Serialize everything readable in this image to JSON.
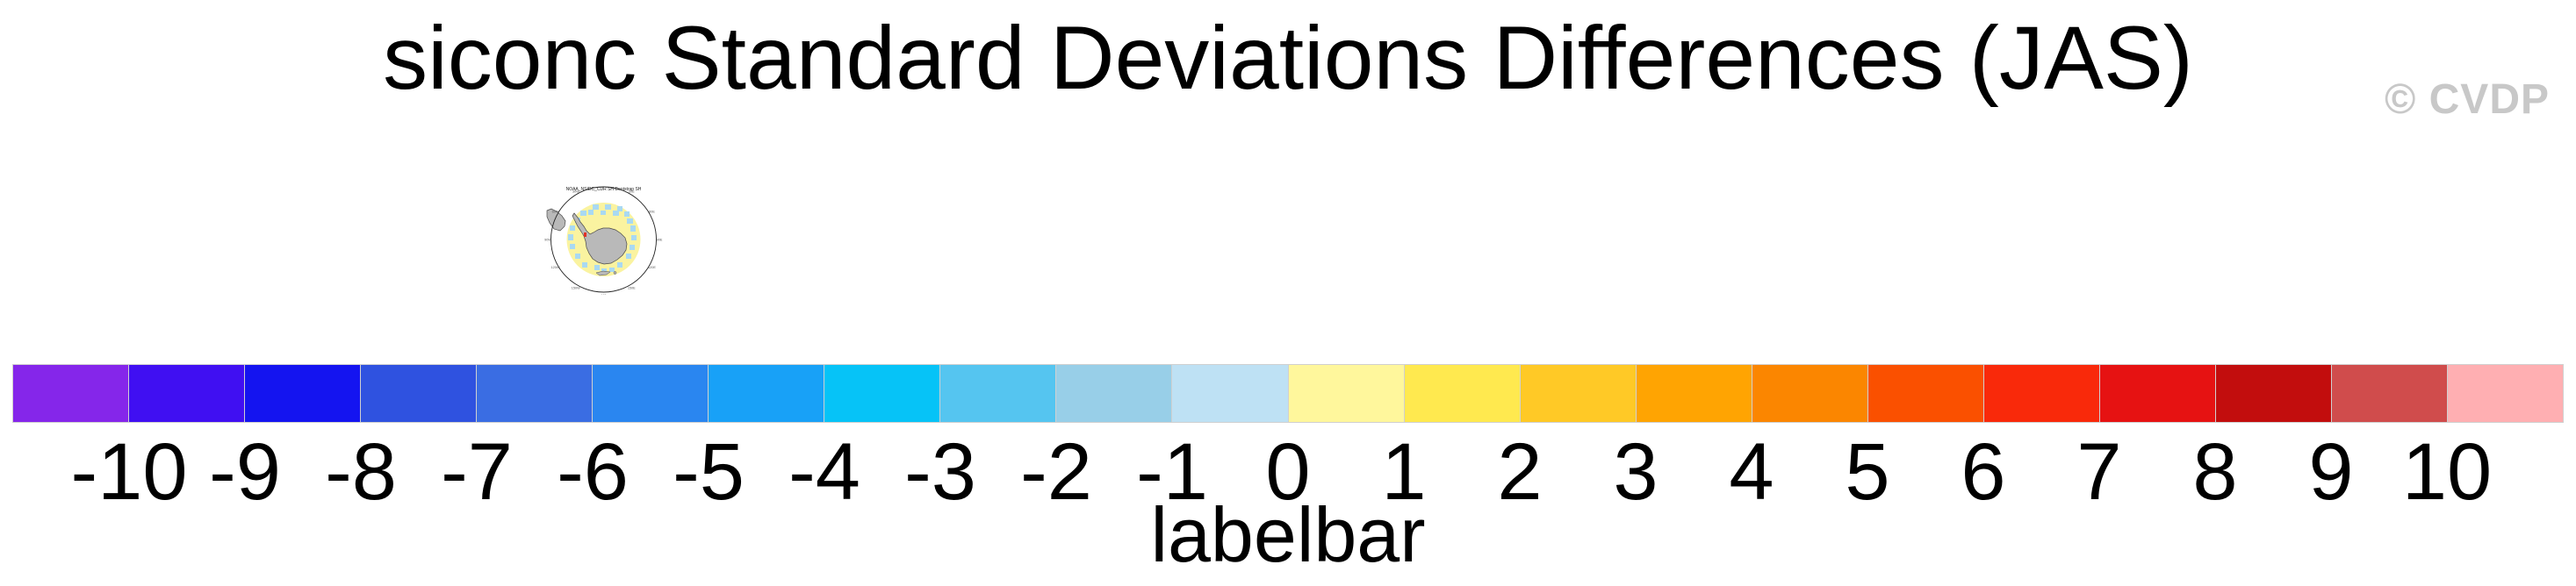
{
  "title": "siconc Standard Deviations Differences (JAS)",
  "watermark": "© CVDP",
  "watermark_color": "#c8c8c8",
  "map_panel": {
    "title": "NOAA_NSIDC_CDR SH-Bootstrap SH",
    "lon_labels": [
      "0",
      "30E",
      "60E",
      "90E",
      "120E",
      "150E",
      "180",
      "150W",
      "120W",
      "90W",
      "60W",
      "30W"
    ],
    "colors": {
      "land": "#b9b9b9",
      "land_outline": "#4a4a4a",
      "positive_cells": "#faf3a0",
      "negative_cells": "#a9d9f2",
      "highlight_cell": "#e03227",
      "circle_outline": "#222222",
      "label_color": "#555555"
    }
  },
  "colorbar": {
    "label": "labelbar",
    "tick_labels": [
      "-10",
      "-9",
      "-8",
      "-7",
      "-6",
      "-5",
      "-4",
      "-3",
      "-2",
      "-1",
      "0",
      "1",
      "2",
      "3",
      "4",
      "5",
      "6",
      "7",
      "8",
      "9",
      "10"
    ],
    "colors": [
      "#8526EA",
      "#400FF2",
      "#1414F0",
      "#2F52E0",
      "#3A6DE3",
      "#2A86F0",
      "#18A1F7",
      "#06C3F7",
      "#55C5F0",
      "#98CFE8",
      "#BEE1F4",
      "#FFF79C",
      "#FFE94F",
      "#FFC926",
      "#FFA402",
      "#FB8600",
      "#FA5000",
      "#F9290A",
      "#E61212",
      "#C20D0D",
      "#D04C4C",
      "#FFAFB2"
    ],
    "border_color": "#d0d0d0"
  },
  "chart_data": {
    "type": "heatmap",
    "title": "siconc Standard Deviations Differences (JAS)",
    "subtitle_panel": "NOAA_NSIDC_CDR SH-Bootstrap SH",
    "colorbar_label": "labelbar",
    "levels": [
      -10,
      -9,
      -8,
      -7,
      -6,
      -5,
      -4,
      -3,
      -2,
      -1,
      0,
      1,
      2,
      3,
      4,
      5,
      6,
      7,
      8,
      9,
      10
    ],
    "level_colors": [
      "#8526EA",
      "#400FF2",
      "#1414F0",
      "#2F52E0",
      "#3A6DE3",
      "#2A86F0",
      "#18A1F7",
      "#06C3F7",
      "#55C5F0",
      "#98CFE8",
      "#BEE1F4",
      "#FFF79C",
      "#FFE94F",
      "#FFC926",
      "#FFA402",
      "#FB8600",
      "#FA5000",
      "#F9290A",
      "#E61212",
      "#C20D0D",
      "#D04C4C",
      "#FFAFB2"
    ],
    "legend_position": "bottom",
    "panel_description": "South-polar stereographic map of Antarctic sea-ice concentration standard-deviation differences; values mostly between -1 and 1 (pale yellow and light blue cells) with one cell near -10/+10 extreme (red) beside the Antarctic Peninsula"
  }
}
